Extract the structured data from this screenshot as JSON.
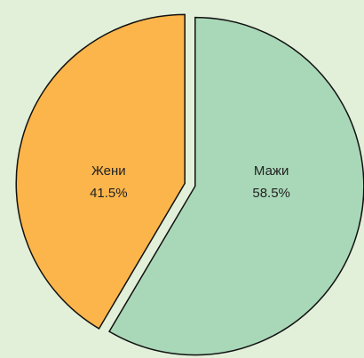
{
  "chart_data": {
    "type": "pie",
    "categories": [
      "Мажи",
      "Жени"
    ],
    "values": [
      58.5,
      41.5
    ],
    "value_labels": [
      "58.5%",
      "41.5%"
    ],
    "colors": [
      "#a9d8b8",
      "#fbb54b"
    ]
  }
}
